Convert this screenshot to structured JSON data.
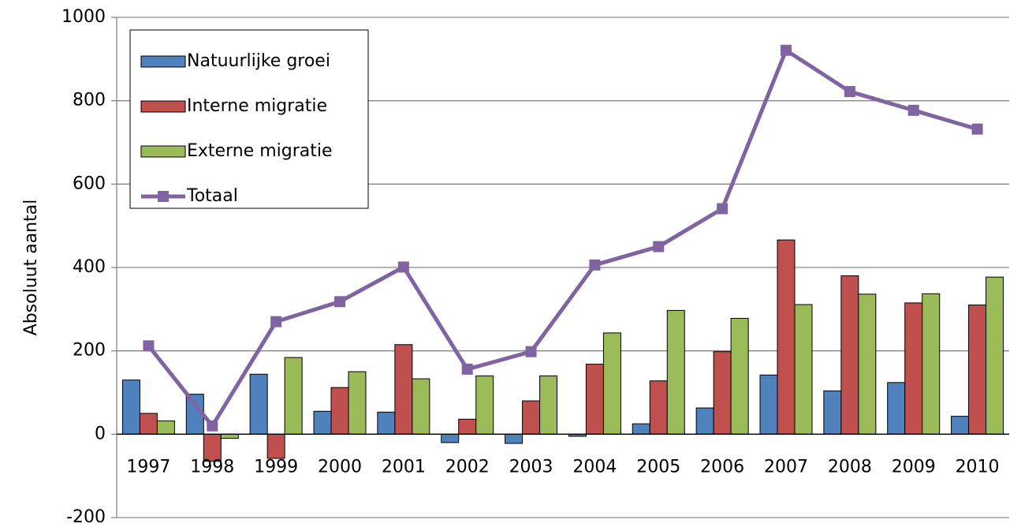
{
  "chart_data": {
    "type": "bar",
    "y_label": "Absoluut aantal",
    "categories": [
      "1997",
      "1998",
      "1999",
      "2000",
      "2001",
      "2002",
      "2003",
      "2004",
      "2005",
      "2006",
      "2007",
      "2008",
      "2009",
      "2010"
    ],
    "series": [
      {
        "name": "Natuurlijke groei",
        "color": "#4f81bd",
        "values": [
          130,
          96,
          144,
          55,
          53,
          -20,
          -22,
          -5,
          25,
          63,
          142,
          104,
          124,
          43
        ]
      },
      {
        "name": "Interne migratie",
        "color": "#c0504d",
        "values": [
          50,
          -65,
          -58,
          112,
          215,
          36,
          80,
          168,
          128,
          198,
          466,
          380,
          315,
          310
        ]
      },
      {
        "name": "Externe migratie",
        "color": "#9bbb59",
        "values": [
          32,
          -10,
          184,
          150,
          133,
          140,
          140,
          243,
          297,
          278,
          311,
          336,
          337,
          377
        ]
      },
      {
        "name": "Totaal",
        "color": "#8064a2",
        "type": "line",
        "values": [
          212,
          20,
          270,
          318,
          401,
          156,
          198,
          406,
          450,
          541,
          921,
          822,
          777,
          732
        ]
      }
    ],
    "ylim": [
      -200,
      1000
    ],
    "yticks": [
      -200,
      0,
      200,
      400,
      600,
      800,
      1000
    ],
    "grid": true,
    "legend": "upper left"
  }
}
